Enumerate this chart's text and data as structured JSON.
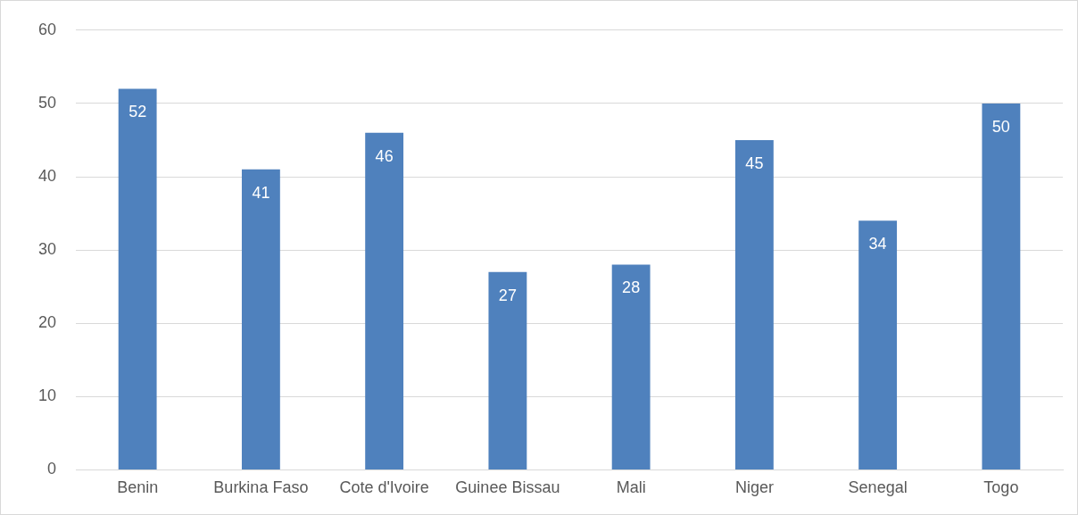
{
  "chart_data": {
    "type": "bar",
    "categories": [
      "Benin",
      "Burkina Faso",
      "Cote d'Ivoire",
      "Guinee Bissau",
      "Mali",
      "Niger",
      "Senegal",
      "Togo"
    ],
    "values": [
      52,
      41,
      46,
      27,
      28,
      45,
      34,
      50
    ],
    "color": "#4f81bd",
    "ylim": [
      0,
      60
    ],
    "yticks": [
      0,
      10,
      20,
      30,
      40,
      50,
      60
    ],
    "grid": "y",
    "legend": false,
    "data_labels": true
  }
}
